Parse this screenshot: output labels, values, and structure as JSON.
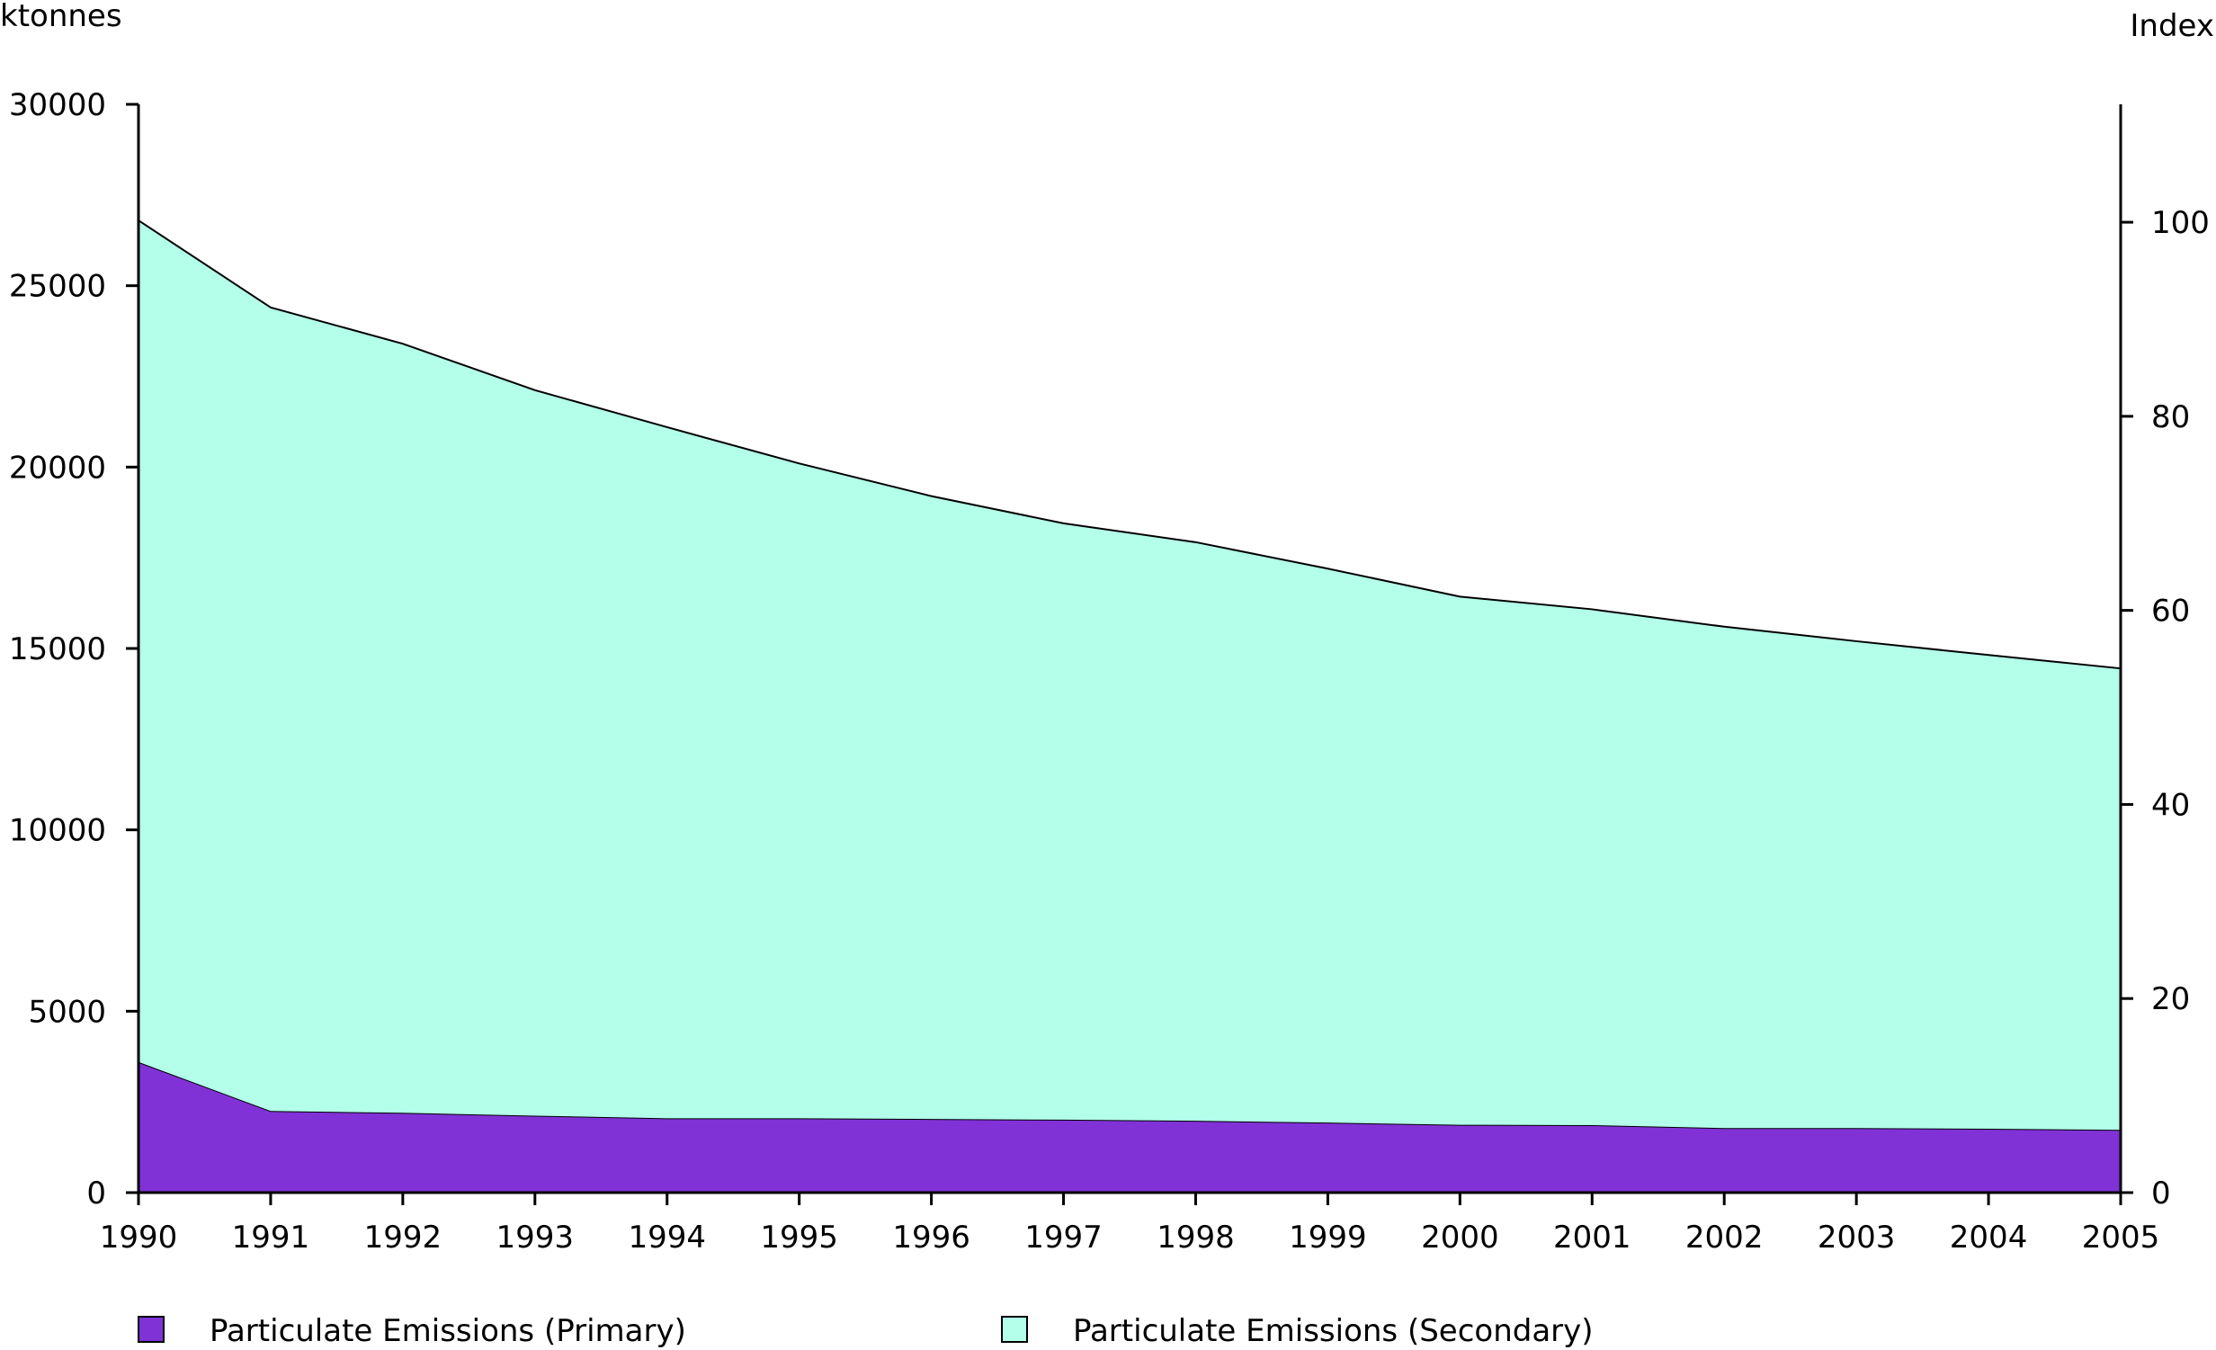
{
  "chart_data": {
    "type": "area",
    "stacked": true,
    "x": [
      1990,
      1991,
      1992,
      1993,
      1994,
      1995,
      1996,
      1997,
      1998,
      1999,
      2000,
      2001,
      2002,
      2003,
      2004,
      2005
    ],
    "series": [
      {
        "name": "Particulate Emissions (Primary)",
        "color": "#8032d6",
        "values": [
          3600,
          2250,
          2200,
          2120,
          2050,
          2050,
          2030,
          2010,
          1980,
          1930,
          1870,
          1860,
          1780,
          1780,
          1760,
          1730
        ]
      },
      {
        "name": "Particulate Emissions (Secondary)",
        "color": "#b3ffea",
        "values": [
          23200,
          22150,
          21200,
          20000,
          19050,
          18050,
          17170,
          16440,
          15950,
          15270,
          14560,
          14220,
          13820,
          13420,
          13060,
          12720
        ]
      }
    ],
    "ylabel_left": "ktonnes",
    "ylabel_right": "Index",
    "ylim_left": [
      0,
      30000
    ],
    "yticks_left": [
      0,
      5000,
      10000,
      15000,
      20000,
      25000,
      30000
    ],
    "ylim_right": [
      0,
      112.15
    ],
    "yticks_right": [
      0,
      20,
      40,
      60,
      80,
      100
    ],
    "grid": false,
    "legend_position": "bottom"
  }
}
